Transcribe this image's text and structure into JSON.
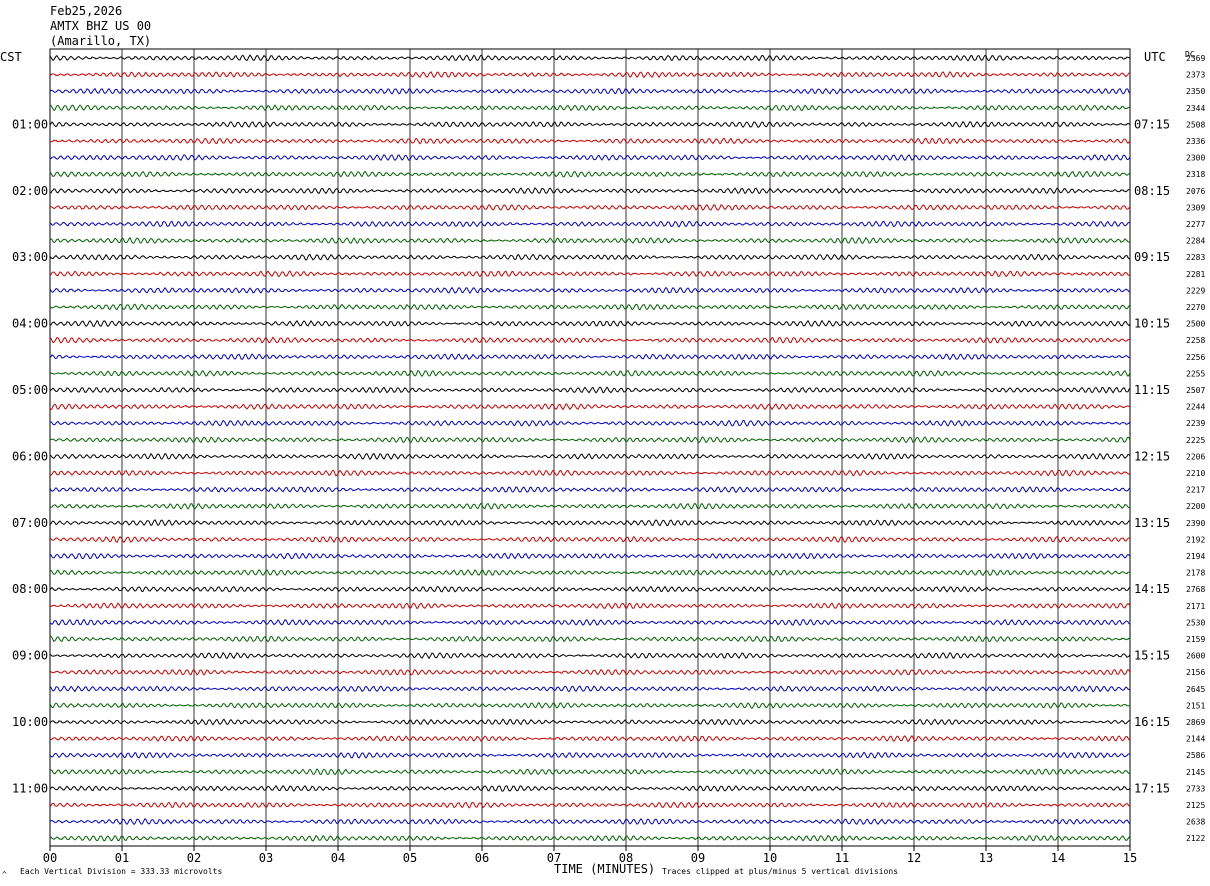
{
  "header": {
    "date": "Feb25,2026",
    "station": "AMTX BHZ US 00",
    "location": "(Amarillo, TX)"
  },
  "left_axis_title": "CST",
  "right_axis_title": "UTC",
  "dc_title": "DC",
  "footer": {
    "vertical_division": "Each Vertical Division =  333.33 microvolts",
    "clip_note": "Traces clipped at plus/minus 5 vertical divisions",
    "corner_mark": "^"
  },
  "chart_data": {
    "type": "line",
    "xlabel": "TIME (MINUTES)",
    "xlim": [
      0,
      15
    ],
    "x_ticks": [
      "00",
      "01",
      "02",
      "03",
      "04",
      "05",
      "06",
      "07",
      "08",
      "09",
      "10",
      "11",
      "12",
      "13",
      "14",
      "15"
    ],
    "trace_colors": [
      "#000000",
      "#d00000",
      "#0000c8",
      "#006400"
    ],
    "left_hour_labels": [
      "01:00",
      "02:00",
      "03:00",
      "04:00",
      "05:00",
      "06:00",
      "07:00",
      "08:00",
      "09:00",
      "10:00",
      "11:00"
    ],
    "right_hour_labels": [
      "07:15",
      "08:15",
      "09:15",
      "10:15",
      "11:15",
      "12:15",
      "13:15",
      "14:15",
      "15:15",
      "16:15",
      "17:15"
    ],
    "dc_values": [
      "2369",
      "2373",
      "2350",
      "2344",
      "2508",
      "2336",
      "2300",
      "2318",
      "2076",
      "2309",
      "2277",
      "2284",
      "2283",
      "2281",
      "2229",
      "2270",
      "2500",
      "2258",
      "2256",
      "2255",
      "2507",
      "2244",
      "2239",
      "2225",
      "2206",
      "2210",
      "2217",
      "2200",
      "2390",
      "2192",
      "2194",
      "2178",
      "2768",
      "2171",
      "2530",
      "2159",
      "2600",
      "2156",
      "2645",
      "2151",
      "2869",
      "2144",
      "2586",
      "2145",
      "2733",
      "2125",
      "2638",
      "2122"
    ]
  }
}
